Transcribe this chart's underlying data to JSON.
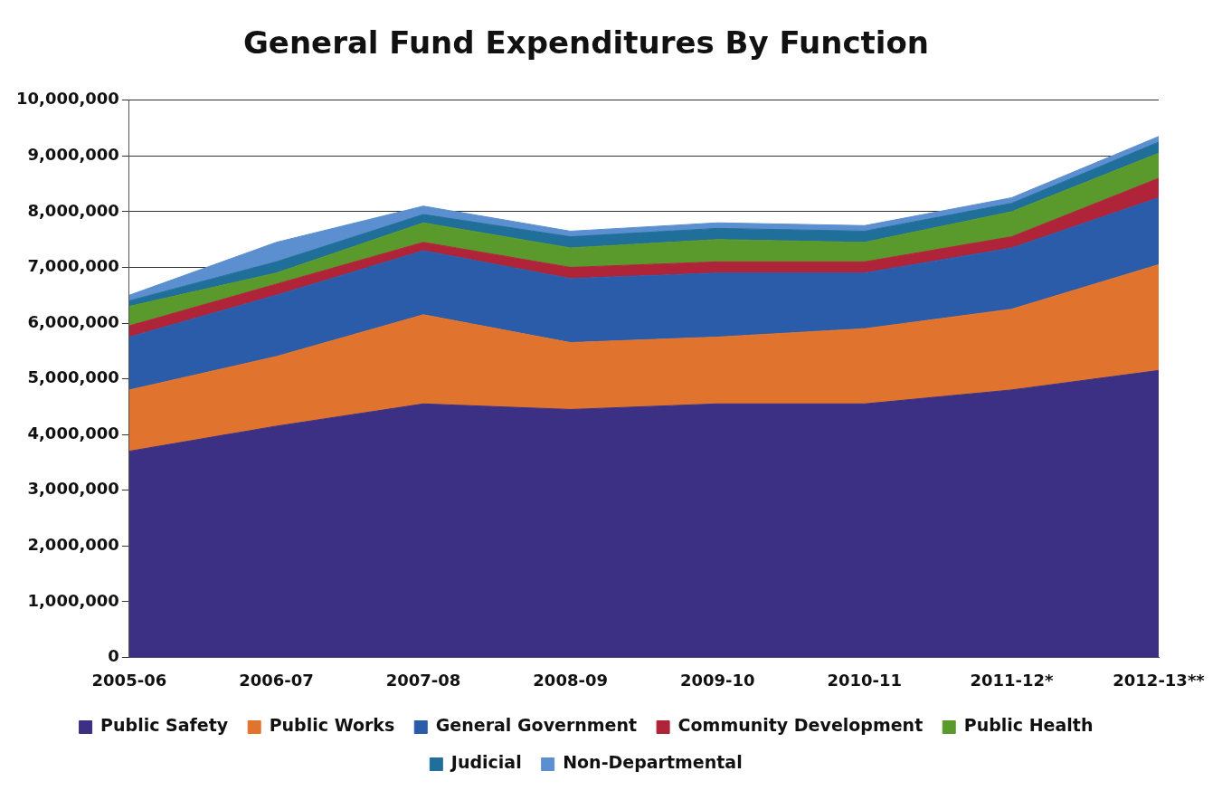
{
  "chart_data": {
    "type": "area",
    "title": "General Fund Expenditures By Function",
    "stacked": true,
    "grid": "y",
    "legend": "bottom",
    "categories": [
      "2005-06",
      "2006-07",
      "2007-08",
      "2008-09",
      "2009-10",
      "2010-11",
      "2011-12*",
      "2012-13**"
    ],
    "ylim": [
      0,
      10000000
    ],
    "yticks": [
      0,
      {
        "value": 1000000,
        "label": "1,000,000"
      },
      {
        "value": 2000000,
        "label": "2,000,000"
      },
      {
        "value": 3000000,
        "label": "3,000,000"
      },
      {
        "value": 4000000,
        "label": "4,000,000"
      },
      {
        "value": 5000000,
        "label": "5,000,000"
      },
      {
        "value": 6000000,
        "label": "6,000,000"
      },
      {
        "value": 7000000,
        "label": "7,000,000"
      },
      {
        "value": 8000000,
        "label": "8,000,000"
      },
      {
        "value": 9000000,
        "label": "9,000,000"
      },
      {
        "value": 10000000,
        "label": "10,000,000"
      }
    ],
    "series": [
      {
        "name": "Public Safety",
        "color": "#3b3083",
        "values": [
          3700000,
          4150000,
          4550000,
          4450000,
          4550000,
          4550000,
          4800000,
          5150000
        ]
      },
      {
        "name": "Public Works",
        "color": "#e0742e",
        "values": [
          1100000,
          1250000,
          1600000,
          1200000,
          1200000,
          1350000,
          1450000,
          1900000
        ]
      },
      {
        "name": "General Government",
        "color": "#2a5caa",
        "values": [
          950000,
          1100000,
          1150000,
          1150000,
          1150000,
          1000000,
          1100000,
          1200000
        ]
      },
      {
        "name": "Community Development",
        "color": "#b0243a",
        "values": [
          200000,
          200000,
          150000,
          200000,
          200000,
          200000,
          200000,
          350000
        ]
      },
      {
        "name": "Public Health",
        "color": "#5a9a2c",
        "values": [
          350000,
          200000,
          350000,
          350000,
          400000,
          350000,
          450000,
          450000
        ]
      },
      {
        "name": "Judicial",
        "color": "#1f6f9a",
        "values": [
          100000,
          200000,
          150000,
          200000,
          200000,
          200000,
          150000,
          200000
        ]
      },
      {
        "name": "Non-Departmental",
        "color": "#5b8fd0",
        "values": [
          100000,
          350000,
          150000,
          100000,
          100000,
          100000,
          100000,
          100000
        ]
      }
    ]
  }
}
